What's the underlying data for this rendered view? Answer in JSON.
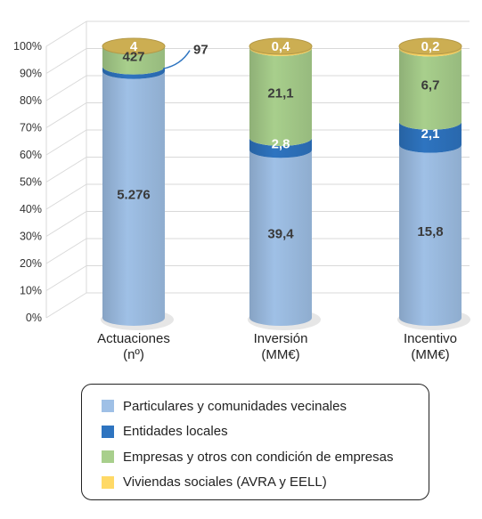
{
  "chart_data": {
    "type": "bar",
    "stacked": "percent",
    "style": "3d-cylinder",
    "categories": [
      {
        "line1": "Actuaciones",
        "line2": "(nº)"
      },
      {
        "line1": "Inversión",
        "line2": "(MM€)"
      },
      {
        "line1": "Incentivo",
        "line2": "(MM€)"
      }
    ],
    "series": [
      {
        "name": "Particulares y comunidades vecinales",
        "color": "#9fc0e6",
        "values": [
          5276,
          39.4,
          15.8
        ],
        "labels": [
          "5.276",
          "39,4",
          "15,8"
        ]
      },
      {
        "name": "Entidades locales",
        "color": "#2e74c0",
        "values": [
          97,
          2.8,
          2.1
        ],
        "labels": [
          "97",
          "2,8",
          "2,1"
        ]
      },
      {
        "name": "Empresas y otros con condición de empresas",
        "color": "#a8cf8c",
        "values": [
          427,
          21.1,
          6.7
        ],
        "labels": [
          "427",
          "21,1",
          "6,7"
        ]
      },
      {
        "name": "Viviendas sociales (AVRA y EELL)",
        "color": "#ffd966",
        "values": [
          4,
          0.4,
          0.2
        ],
        "labels": [
          "4",
          "0,4",
          "0,2"
        ]
      }
    ],
    "y_ticks": [
      "0%",
      "10%",
      "20%",
      "30%",
      "40%",
      "50%",
      "60%",
      "70%",
      "80%",
      "90%",
      "100%"
    ],
    "ylim": [
      0,
      100
    ],
    "grid": true,
    "legend_position": "bottom"
  }
}
